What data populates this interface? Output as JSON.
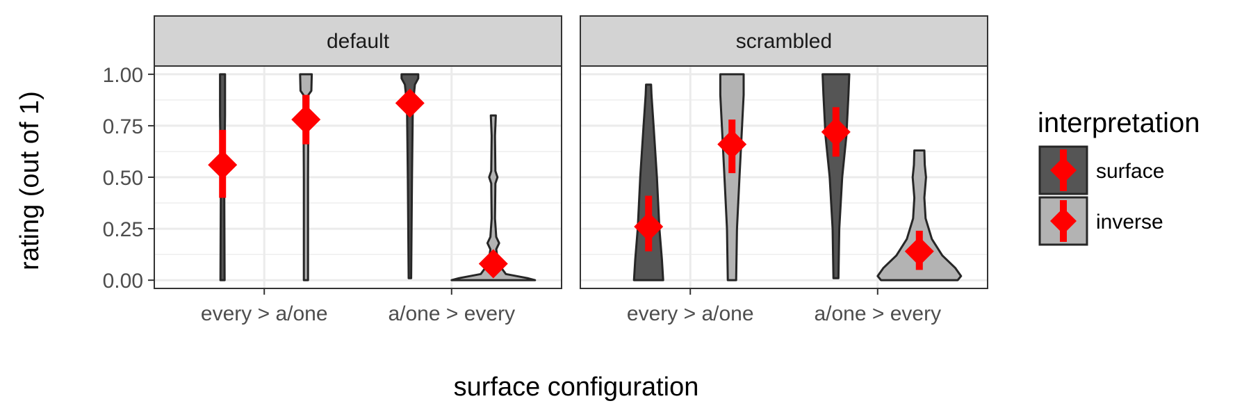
{
  "chart_data": {
    "type": "violin",
    "xlabel": "surface configuration",
    "ylabel": "rating (out of 1)",
    "ylim": [
      -0.04,
      1.04
    ],
    "yticks": [
      0.0,
      0.25,
      0.5,
      0.75,
      1.0
    ],
    "ytick_labels": [
      "0.00",
      "0.25",
      "0.50",
      "0.75",
      "1.00"
    ],
    "categories": [
      "every > a/one",
      "a/one > every"
    ],
    "grid": true,
    "legend": {
      "title": "interpretation",
      "position": "right",
      "entries": [
        {
          "label": "surface",
          "fill": "#555555"
        },
        {
          "label": "inverse",
          "fill": "#b3b3b3"
        }
      ]
    },
    "colors": {
      "surface": "#555555",
      "inverse": "#b3b3b3",
      "mean_marker": "#ff0000",
      "strip_bg": "#d3d3d3",
      "grid": "#ebebeb"
    },
    "panels": [
      {
        "facet": "default",
        "violins": [
          {
            "category": "every > a/one",
            "interpretation": "surface",
            "mean": 0.56,
            "ci": [
              0.4,
              0.73
            ],
            "ymin": 0.0,
            "ymax": 1.0,
            "density": [
              [
                0.0,
                0.05
              ],
              [
                0.5,
                0.04
              ],
              [
                0.8,
                0.06
              ],
              [
                1.0,
                0.06
              ]
            ]
          },
          {
            "category": "every > a/one",
            "interpretation": "inverse",
            "mean": 0.78,
            "ci": [
              0.66,
              0.9
            ],
            "ymin": 0.0,
            "ymax": 1.0,
            "density": [
              [
                0.0,
                0.05
              ],
              [
                0.5,
                0.05
              ],
              [
                0.9,
                0.06
              ],
              [
                0.92,
                0.13
              ],
              [
                1.0,
                0.14
              ]
            ]
          },
          {
            "category": "a/one > every",
            "interpretation": "surface",
            "mean": 0.86,
            "ci": [
              0.82,
              0.91
            ],
            "ymin": 0.01,
            "ymax": 1.0,
            "density": [
              [
                0.01,
                0.03
              ],
              [
                0.5,
                0.05
              ],
              [
                0.85,
                0.07
              ],
              [
                0.95,
                0.12
              ],
              [
                0.98,
                0.2
              ],
              [
                1.0,
                0.2
              ]
            ]
          },
          {
            "category": "a/one > every",
            "interpretation": "inverse",
            "mean": 0.08,
            "ci": [
              0.05,
              0.11
            ],
            "ymin": 0.0,
            "ymax": 0.8,
            "density": [
              [
                0.0,
                1.0
              ],
              [
                0.01,
                0.82
              ],
              [
                0.03,
                0.3
              ],
              [
                0.08,
                0.12
              ],
              [
                0.15,
                0.07
              ],
              [
                0.18,
                0.14
              ],
              [
                0.21,
                0.07
              ],
              [
                0.3,
                0.04
              ],
              [
                0.47,
                0.05
              ],
              [
                0.5,
                0.1
              ],
              [
                0.53,
                0.05
              ],
              [
                0.7,
                0.04
              ],
              [
                0.8,
                0.06
              ]
            ]
          }
        ]
      },
      {
        "facet": "scrambled",
        "violins": [
          {
            "category": "every > a/one",
            "interpretation": "surface",
            "mean": 0.26,
            "ci": [
              0.14,
              0.41
            ],
            "ymin": 0.0,
            "ymax": 0.95,
            "density": [
              [
                0.0,
                0.35
              ],
              [
                0.1,
                0.32
              ],
              [
                0.25,
                0.26
              ],
              [
                0.5,
                0.2
              ],
              [
                0.75,
                0.12
              ],
              [
                0.9,
                0.07
              ],
              [
                0.95,
                0.06
              ]
            ]
          },
          {
            "category": "every > a/one",
            "interpretation": "inverse",
            "mean": 0.66,
            "ci": [
              0.52,
              0.78
            ],
            "ymin": 0.0,
            "ymax": 1.0,
            "density": [
              [
                0.0,
                0.1
              ],
              [
                0.25,
                0.12
              ],
              [
                0.5,
                0.18
              ],
              [
                0.7,
                0.23
              ],
              [
                0.9,
                0.28
              ],
              [
                1.0,
                0.28
              ]
            ]
          },
          {
            "category": "a/one > every",
            "interpretation": "surface",
            "mean": 0.72,
            "ci": [
              0.6,
              0.84
            ],
            "ymin": 0.01,
            "ymax": 1.0,
            "density": [
              [
                0.01,
                0.06
              ],
              [
                0.25,
                0.08
              ],
              [
                0.5,
                0.15
              ],
              [
                0.7,
                0.25
              ],
              [
                0.9,
                0.3
              ],
              [
                1.0,
                0.32
              ]
            ]
          },
          {
            "category": "a/one > every",
            "interpretation": "inverse",
            "mean": 0.14,
            "ci": [
              0.05,
              0.24
            ],
            "ymin": 0.0,
            "ymax": 0.63,
            "density": [
              [
                0.0,
                0.92
              ],
              [
                0.02,
                1.0
              ],
              [
                0.06,
                0.86
              ],
              [
                0.12,
                0.55
              ],
              [
                0.2,
                0.3
              ],
              [
                0.3,
                0.15
              ],
              [
                0.4,
                0.12
              ],
              [
                0.5,
                0.16
              ],
              [
                0.56,
                0.13
              ],
              [
                0.63,
                0.12
              ]
            ]
          }
        ]
      }
    ]
  }
}
